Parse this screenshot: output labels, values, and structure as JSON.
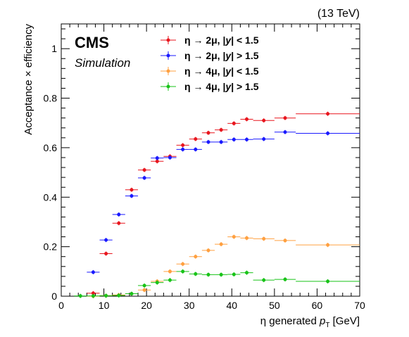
{
  "chart_data": {
    "type": "scatter",
    "energy_label": "(13 TeV)",
    "experiment_label": "CMS",
    "sub_label": "Simulation",
    "xlabel": {
      "main": "η generated ",
      "italic": "p",
      "sub": "T",
      "unit": " [GeV]"
    },
    "ylabel": "Acceptance × efficiency",
    "xlim": [
      0,
      70
    ],
    "ylim": [
      0,
      1.1
    ],
    "x_ticks": [
      0,
      10,
      20,
      30,
      40,
      50,
      60,
      70
    ],
    "y_ticks": [
      0,
      0.2,
      0.4,
      0.6,
      0.8,
      1
    ],
    "y_tick_labels": [
      "0",
      "0.2",
      "0.4",
      "0.6",
      "0.8",
      "1"
    ],
    "grid": false,
    "legend_position": "top-center",
    "series": [
      {
        "name": "η → 2μ, |y| < 1.5",
        "legend": {
          "prefix": "η → 2μ, |",
          "var": "y",
          "suffix": "| < 1.5"
        },
        "color": "#e8161e",
        "x": [
          7.5,
          10.5,
          13.5,
          16.5,
          19.5,
          22.5,
          25.5,
          28.5,
          31.5,
          34.5,
          37.5,
          40.5,
          43.5,
          47.5,
          52.5,
          62.5
        ],
        "x_err": [
          1.5,
          1.5,
          1.5,
          1.5,
          1.5,
          1.5,
          1.5,
          1.5,
          1.5,
          1.5,
          1.5,
          1.5,
          1.5,
          2.5,
          2.5,
          7.5
        ],
        "y": [
          0.012,
          0.172,
          0.295,
          0.43,
          0.51,
          0.545,
          0.565,
          0.61,
          0.635,
          0.66,
          0.672,
          0.698,
          0.715,
          0.71,
          0.72,
          0.737
        ]
      },
      {
        "name": "η → 2μ, |y| > 1.5",
        "legend": {
          "prefix": "η → 2μ, |",
          "var": "y",
          "suffix": "| > 1.5"
        },
        "color": "#1a1aff",
        "x": [
          7.5,
          10.5,
          13.5,
          16.5,
          19.5,
          22.5,
          25.5,
          28.5,
          31.5,
          34.5,
          37.5,
          40.5,
          43.5,
          47.5,
          52.5,
          62.5
        ],
        "x_err": [
          1.5,
          1.5,
          1.5,
          1.5,
          1.5,
          1.5,
          1.5,
          1.5,
          1.5,
          1.5,
          1.5,
          1.5,
          1.5,
          2.5,
          2.5,
          7.5
        ],
        "y": [
          0.097,
          0.227,
          0.33,
          0.405,
          0.478,
          0.558,
          0.56,
          0.593,
          0.593,
          0.623,
          0.623,
          0.633,
          0.633,
          0.635,
          0.663,
          0.658
        ]
      },
      {
        "name": "η → 4μ, |y| < 1.5",
        "legend": {
          "prefix": "η → 4μ, |",
          "var": "y",
          "suffix": "| < 1.5"
        },
        "color": "#ffa040",
        "x": [
          7.5,
          10.5,
          13.5,
          16.5,
          19.5,
          22.5,
          25.5,
          28.5,
          31.5,
          34.5,
          37.5,
          40.5,
          43.5,
          47.5,
          52.5,
          62.5
        ],
        "x_err": [
          1.5,
          1.5,
          1.5,
          1.5,
          1.5,
          1.5,
          1.5,
          1.5,
          1.5,
          1.5,
          1.5,
          1.5,
          1.5,
          2.5,
          2.5,
          7.5
        ],
        "y": [
          0.0,
          0.002,
          0.005,
          0.01,
          0.025,
          0.06,
          0.1,
          0.13,
          0.16,
          0.185,
          0.21,
          0.24,
          0.235,
          0.232,
          0.225,
          0.207
        ]
      },
      {
        "name": "η → 4μ, |y| > 1.5",
        "legend": {
          "prefix": "η → 4μ, |",
          "var": "y",
          "suffix": "| > 1.5"
        },
        "color": "#19c319",
        "x": [
          4.5,
          7.5,
          10.5,
          13.5,
          16.5,
          19.5,
          22.5,
          25.5,
          28.5,
          31.5,
          34.5,
          37.5,
          40.5,
          43.5,
          47.5,
          52.5,
          62.5
        ],
        "x_err": [
          1.5,
          1.5,
          1.5,
          1.5,
          1.5,
          1.5,
          1.5,
          1.5,
          1.5,
          1.5,
          1.5,
          1.5,
          1.5,
          1.5,
          2.5,
          2.5,
          7.5
        ],
        "y": [
          0.001,
          0.001,
          0.002,
          0.003,
          0.01,
          0.043,
          0.055,
          0.065,
          0.1,
          0.09,
          0.087,
          0.087,
          0.088,
          0.095,
          0.065,
          0.068,
          0.06
        ]
      }
    ]
  }
}
